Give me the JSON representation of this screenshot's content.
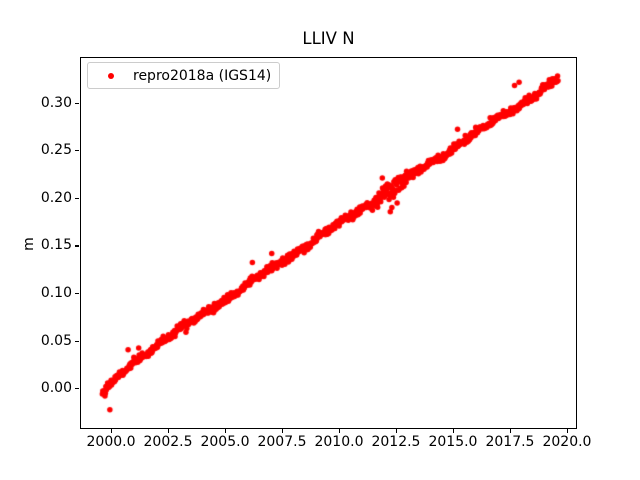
{
  "figure": {
    "background": "#ffffff",
    "frame_color": "#000000"
  },
  "legend": {
    "label": "repro2018a (IGS14)",
    "marker_color": "#ff0000",
    "position": "upper left"
  },
  "chart_data": {
    "type": "scatter",
    "title": "LLIV N",
    "xlabel": "",
    "ylabel": "m",
    "grid": false,
    "legend_position": "upper left",
    "xlim": [
      1998.64,
      2020.44
    ],
    "ylim": [
      -0.0428,
      0.348
    ],
    "xticks": [
      2000.0,
      2002.5,
      2005.0,
      2007.5,
      2010.0,
      2012.5,
      2015.0,
      2017.5,
      2020.0
    ],
    "xtick_labels": [
      "2000.0",
      "2002.5",
      "2005.0",
      "2007.5",
      "2010.0",
      "2012.5",
      "2015.0",
      "2017.5",
      "2020.0"
    ],
    "yticks": [
      0.0,
      0.05,
      0.1,
      0.15,
      0.2,
      0.25,
      0.3
    ],
    "ytick_labels": [
      "0.00",
      "0.05",
      "0.10",
      "0.15",
      "0.20",
      "0.25",
      "0.30"
    ],
    "series": [
      {
        "name": "repro2018a (IGS14)",
        "color": "#ff0000",
        "marker": "circle",
        "marker_diameter_px": 5.5,
        "model": {
          "description": "dense ~weekly GPS north-component positions, near-linear uplift trend read from plot",
          "t_start": 1999.62,
          "t_end": 2019.62,
          "step": 0.0192,
          "intercept_at_2000": 0.002,
          "slope_m_per_yr": 0.01585,
          "ramp_amp": 0.012,
          "ramp_tau_yr": 0.6,
          "seasonal_amp": 0.0012,
          "seasonal_phase": 0.8,
          "wiggle_amp": 0.0015,
          "wiggle_period_yr": 3.3,
          "wiggle_phase": 1.2,
          "noise_std": 0.0019,
          "outlier_rate": 0.02,
          "outlier_std": 0.005,
          "extra_scatter": {
            "t_min": 2011.4,
            "t_max": 2013.3,
            "factor": 2.2
          },
          "seed": 42
        },
        "outliers": [
          [
            1999.95,
            -0.0225
          ],
          [
            2000.75,
            0.0405
          ],
          [
            2006.2,
            0.132
          ],
          [
            2007.05,
            0.1415
          ],
          [
            2011.9,
            0.221
          ],
          [
            2012.2,
            0.2135
          ],
          [
            2012.25,
            0.1855
          ],
          [
            2012.32,
            0.19
          ],
          [
            2012.55,
            0.1945
          ],
          [
            2012.7,
            0.222
          ],
          [
            2015.2,
            0.272
          ],
          [
            2017.7,
            0.318
          ],
          [
            2017.9,
            0.3215
          ]
        ]
      }
    ]
  }
}
